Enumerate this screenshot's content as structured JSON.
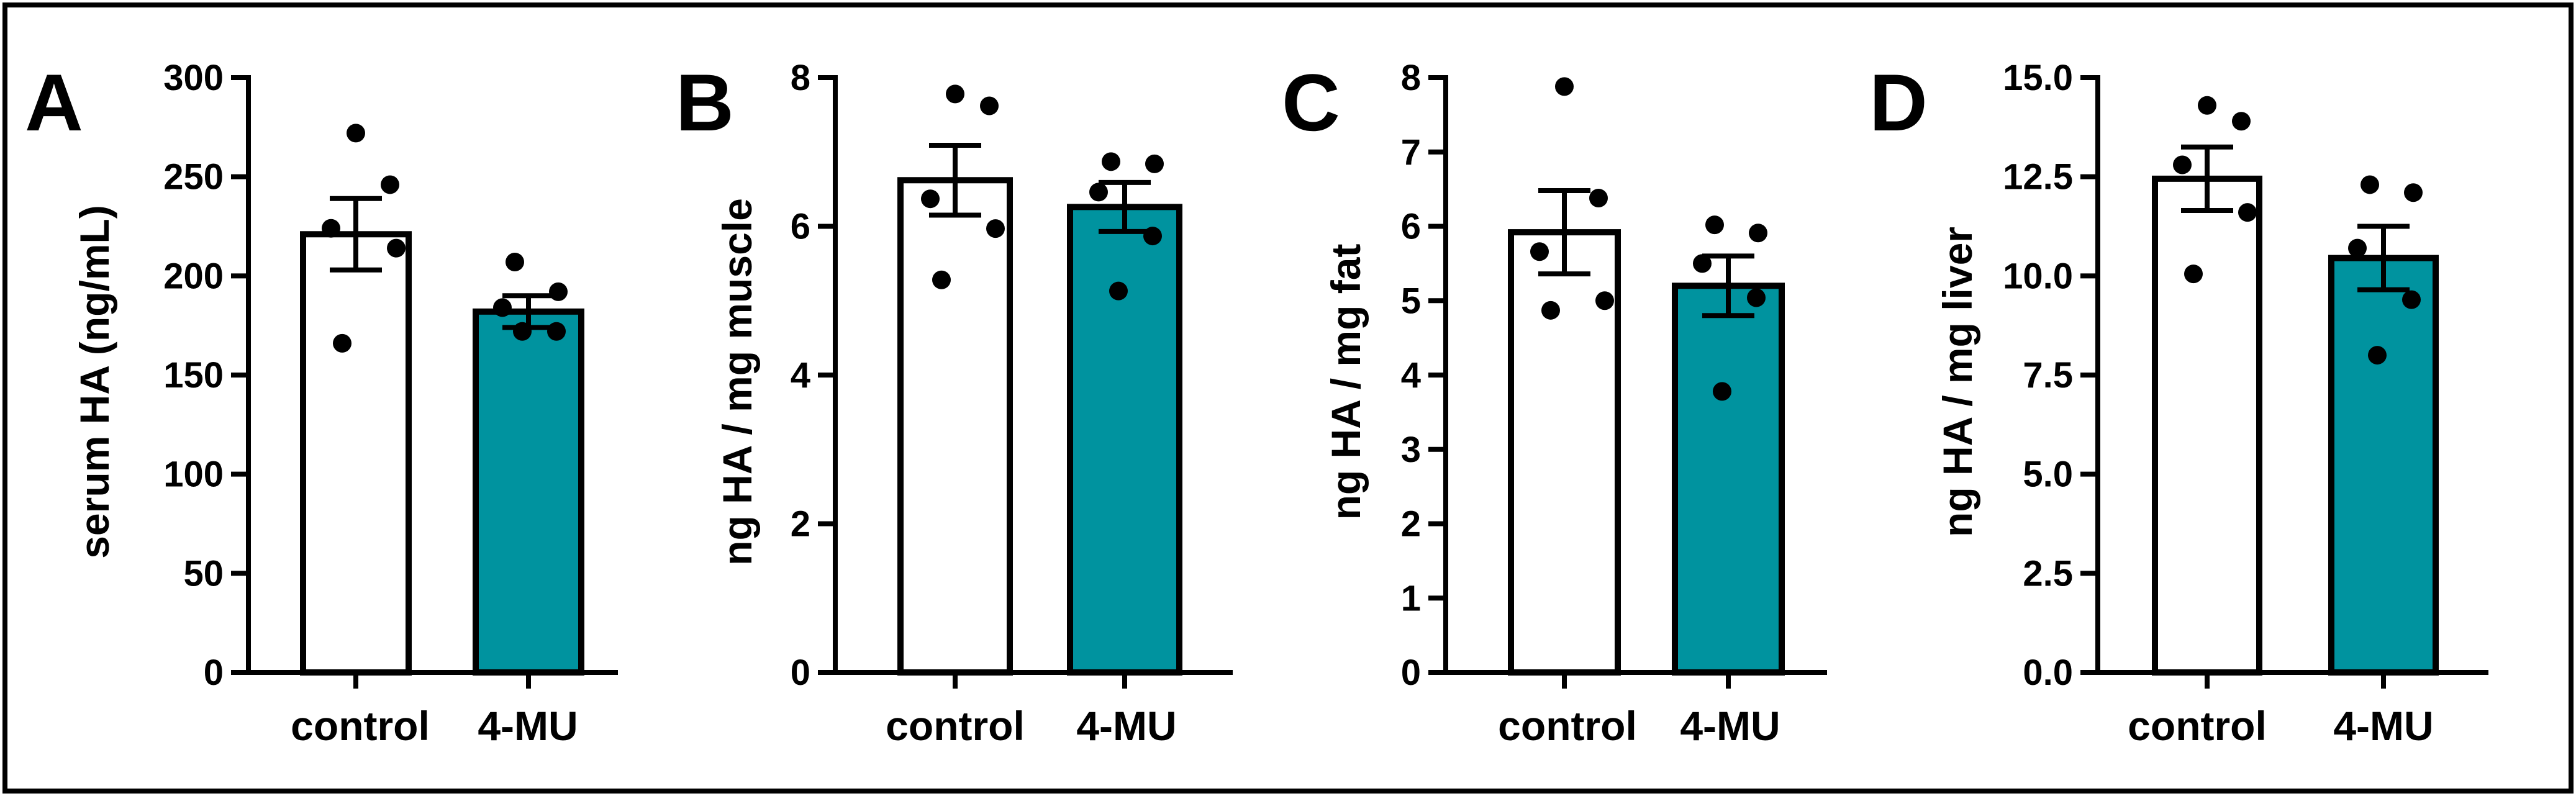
{
  "colors": {
    "control": "#ffffff",
    "treated": "#00939f",
    "axis": "#000000"
  },
  "chart_data": [
    {
      "panel": "A",
      "type": "bar",
      "ylabel": "serum HA (ng/mL)",
      "categories": [
        "control",
        "4-MU"
      ],
      "ylim": [
        0,
        300
      ],
      "yticks": [
        0,
        50,
        100,
        150,
        200,
        250,
        300
      ],
      "ytick_labels": [
        "0",
        "50",
        "100",
        "150",
        "200",
        "250",
        "300"
      ],
      "means": [
        221,
        182
      ],
      "sem": [
        18,
        8
      ],
      "points": [
        [
          272,
          246,
          224,
          214,
          166
        ],
        [
          207,
          192,
          184,
          172,
          172
        ]
      ]
    },
    {
      "panel": "B",
      "type": "bar",
      "ylabel": "ng HA / mg muscle",
      "categories": [
        "control",
        "4-MU"
      ],
      "ylim": [
        0,
        8
      ],
      "yticks": [
        0,
        2,
        4,
        6,
        8
      ],
      "ytick_labels": [
        "0",
        "2",
        "4",
        "6",
        "8"
      ],
      "means": [
        6.62,
        6.26
      ],
      "sem": [
        0.47,
        0.33
      ],
      "points": [
        [
          7.78,
          7.62,
          6.37,
          5.97,
          5.28
        ],
        [
          6.87,
          6.84,
          6.46,
          5.87,
          5.13
        ]
      ]
    },
    {
      "panel": "C",
      "type": "bar",
      "ylabel": "ng HA / mg fat",
      "categories": [
        "control",
        "4-MU"
      ],
      "ylim": [
        0,
        8
      ],
      "yticks": [
        0,
        1,
        2,
        3,
        4,
        5,
        6,
        7,
        8
      ],
      "ytick_labels": [
        "0",
        "1",
        "2",
        "3",
        "4",
        "5",
        "6",
        "7",
        "8"
      ],
      "means": [
        5.92,
        5.2
      ],
      "sem": [
        0.56,
        0.4
      ],
      "points": [
        [
          7.88,
          6.38,
          5.66,
          5.0,
          4.87
        ],
        [
          6.02,
          5.91,
          5.5,
          5.04,
          3.78
        ]
      ]
    },
    {
      "panel": "D",
      "type": "bar",
      "ylabel": "ng HA / mg liver",
      "categories": [
        "control",
        "4-MU"
      ],
      "ylim": [
        0,
        15
      ],
      "yticks": [
        0,
        2.5,
        5,
        7.5,
        10,
        12.5,
        15
      ],
      "ytick_labels": [
        "0.0",
        "2.5",
        "5.0",
        "7.5",
        "10.0",
        "12.5",
        "15.0"
      ],
      "means": [
        12.45,
        10.45
      ],
      "sem": [
        0.8,
        0.8
      ],
      "points": [
        [
          14.3,
          13.9,
          12.8,
          11.6,
          10.05
        ],
        [
          12.3,
          12.1,
          10.7,
          9.4,
          8.0
        ]
      ]
    }
  ]
}
